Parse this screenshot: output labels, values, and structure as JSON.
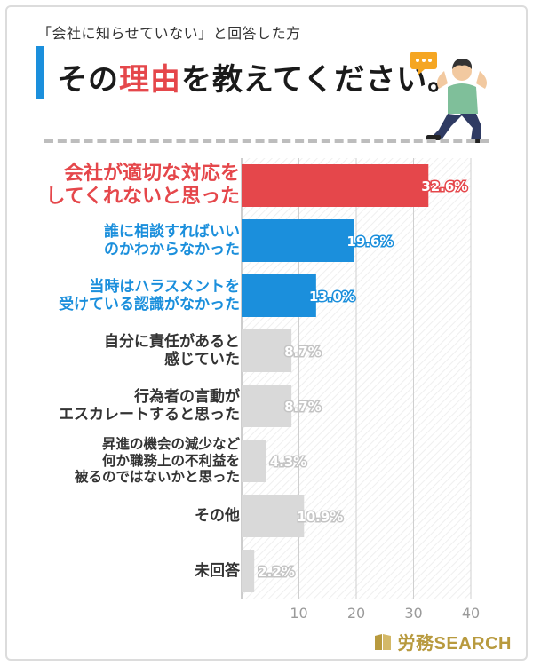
{
  "header": {
    "subtitle": "「会社に知らせていない」と回答した方",
    "title_pre": "その",
    "title_highlight": "理由",
    "title_post": "を教えてください。"
  },
  "logo": {
    "text": "労務SEARCH"
  },
  "colors": {
    "accent_red": "#e5474b",
    "accent_blue": "#1b8fdc",
    "gray_bar": "#d9d9d9",
    "gray_text": "#333333",
    "title_bar": "#1b8fdc"
  },
  "icons": [
    "speech-bubble-icon",
    "stressed-person-icon",
    "logo-mark-icon"
  ],
  "chart_data": {
    "type": "bar",
    "orientation": "horizontal",
    "categories": [
      "会社が適切な対応を\nしてくれないと思った",
      "誰に相談すればいい\nのかわからなかった",
      "当時はハラスメントを\n受けている認識がなかった",
      "自分に責任があると\n感じていた",
      "行為者の言動が\nエスカレートすると思った",
      "昇進の機会の減少など\n何か職務上の不利益を\n被るのではないかと思った",
      "その他",
      "未回答"
    ],
    "values": [
      32.6,
      19.6,
      13.0,
      8.7,
      8.7,
      4.3,
      10.9,
      2.2
    ],
    "value_labels": [
      "32.6%",
      "19.6%",
      "13.0%",
      "8.7%",
      "8.7%",
      "4.3%",
      "10.9%",
      "2.2%"
    ],
    "highlight": [
      "red",
      "blue",
      "blue",
      "gray",
      "gray",
      "gray",
      "gray",
      "gray"
    ],
    "xlim": [
      0,
      40
    ],
    "xticks": [
      10,
      20,
      30,
      40
    ],
    "grid": true
  }
}
